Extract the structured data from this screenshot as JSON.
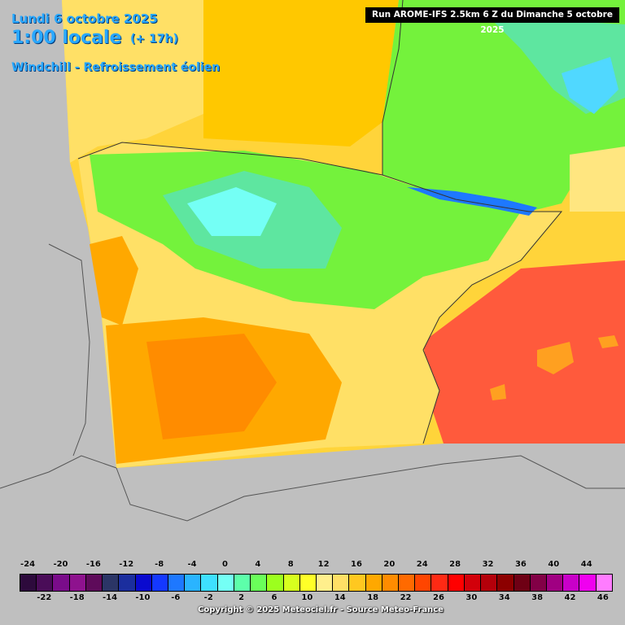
{
  "header": {
    "date": "Lundi 6 octobre 2025",
    "hour": "1:00 locale",
    "lead": "(+ 17h)",
    "parameter": "Windchill - Refroissement éolien",
    "run": "Run AROME-IFS 2.5km 6 Z du Dimanche 5 octobre 2025"
  },
  "legend": {
    "top_labels": [
      "-24",
      "-20",
      "-16",
      "-12",
      "-8",
      "-4",
      "0",
      "4",
      "8",
      "12",
      "16",
      "20",
      "24",
      "28",
      "32",
      "36",
      "40",
      "44"
    ],
    "bottom_labels": [
      "-22",
      "-18",
      "-14",
      "-10",
      "-6",
      "-2",
      "2",
      "6",
      "10",
      "14",
      "18",
      "22",
      "26",
      "30",
      "34",
      "38",
      "42",
      "46"
    ],
    "colors": [
      "#2d0a3c",
      "#4a0c58",
      "#7a0c8a",
      "#8e128e",
      "#5e0b5a",
      "#2b3566",
      "#1b2e9e",
      "#0a0acf",
      "#1438ff",
      "#1e78ff",
      "#2ab4ff",
      "#3ee0ff",
      "#74fff5",
      "#5dffaa",
      "#6aff5a",
      "#9cff1e",
      "#d7ff1e",
      "#ffff28",
      "#ffef8c",
      "#ffe066",
      "#ffc820",
      "#ffa800",
      "#ff8c00",
      "#ff6a00",
      "#ff4500",
      "#ff2a14",
      "#ff0000",
      "#d2000a",
      "#b4000a",
      "#8c0000",
      "#6e0014",
      "#820046",
      "#a00082",
      "#c800c8",
      "#f000f0",
      "#ff7cff"
    ]
  },
  "copyright": "Copyright © 2025 Meteociel.fr - Source Meteo-France"
}
